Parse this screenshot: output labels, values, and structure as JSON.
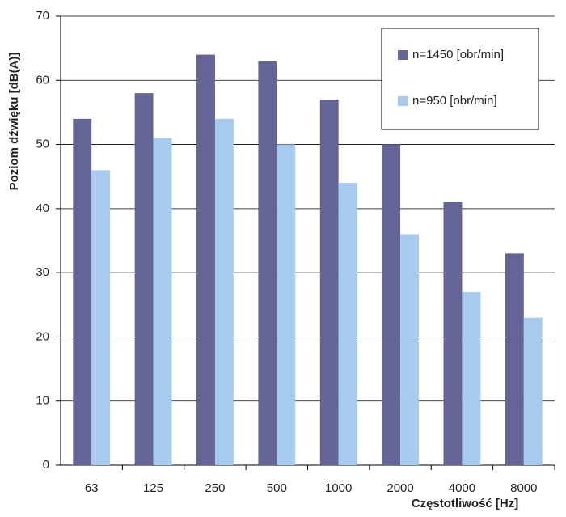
{
  "chart_data": {
    "type": "bar",
    "ylabel": "Poziom dźwięku [dB(A)]",
    "xlabel": "Częstotliwość [Hz]",
    "categories": [
      "63",
      "125",
      "250",
      "500",
      "1000",
      "2000",
      "4000",
      "8000"
    ],
    "series": [
      {
        "name": "n=1450 [obr/min]",
        "color": "#646496",
        "values": [
          54,
          58,
          64,
          63,
          57,
          50,
          41,
          33
        ]
      },
      {
        "name": "n=950 [obr/min]",
        "color": "#a6cbef",
        "values": [
          46,
          51,
          54,
          50,
          44,
          36,
          27,
          23
        ]
      }
    ],
    "ylim": [
      0,
      70
    ],
    "yticks": [
      0,
      10,
      20,
      30,
      40,
      50,
      60,
      70
    ],
    "grid": true,
    "legend": "top-right"
  }
}
